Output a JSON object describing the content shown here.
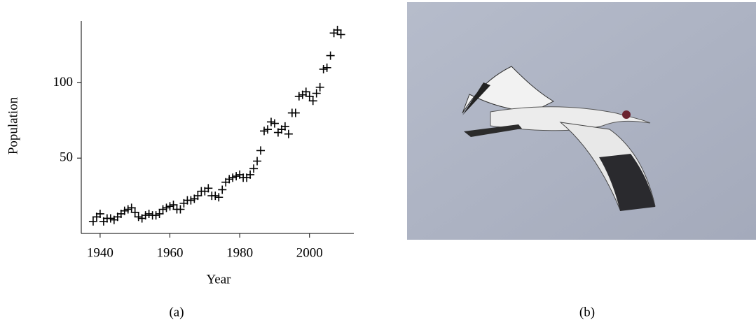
{
  "chart_data": {
    "type": "scatter",
    "caption": "(a)",
    "xlabel": "Year",
    "ylabel": "Population",
    "x": [
      1938,
      1939,
      1940,
      1941,
      1942,
      1943,
      1944,
      1945,
      1946,
      1947,
      1948,
      1949,
      1950,
      1951,
      1952,
      1953,
      1954,
      1955,
      1956,
      1957,
      1958,
      1959,
      1960,
      1961,
      1962,
      1963,
      1964,
      1965,
      1966,
      1967,
      1968,
      1969,
      1970,
      1971,
      1972,
      1973,
      1974,
      1975,
      1976,
      1977,
      1978,
      1979,
      1980,
      1981,
      1982,
      1983,
      1984,
      1985,
      1986,
      1987,
      1988,
      1989,
      1990,
      1991,
      1992,
      1993,
      1994,
      1995,
      1996,
      1997,
      1998,
      1999,
      2000,
      2001,
      2002,
      2003,
      2004,
      2005,
      2006,
      2007,
      2008,
      2009
    ],
    "values": [
      8,
      11,
      13,
      8,
      10,
      10,
      9,
      11,
      13,
      15,
      16,
      17,
      14,
      11,
      10,
      12,
      13,
      12,
      12,
      13,
      16,
      17,
      18,
      19,
      16,
      16,
      20,
      22,
      22,
      23,
      25,
      28,
      28,
      30,
      25,
      25,
      24,
      29,
      34,
      36,
      37,
      38,
      39,
      37,
      37,
      39,
      43,
      48,
      55,
      68,
      69,
      74,
      73,
      67,
      69,
      71,
      66,
      80,
      80,
      91,
      92,
      94,
      91,
      88,
      93,
      97,
      109,
      110,
      118,
      133,
      135,
      132
    ],
    "color": "#000000",
    "xlim": [
      1934.6,
      2012.7
    ],
    "ylim": [
      0,
      141
    ],
    "xticks": [
      1940,
      1960,
      1980,
      2000
    ],
    "yticks": [
      50,
      100
    ]
  },
  "image": {
    "caption": "(b)"
  }
}
